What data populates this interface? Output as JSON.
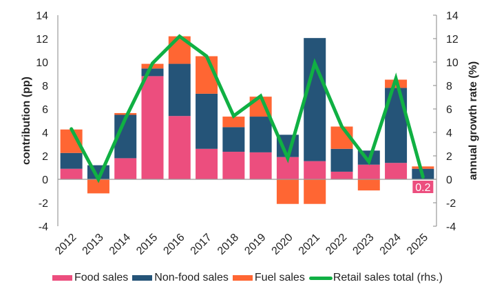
{
  "chart_data": {
    "type": "bar",
    "stacked": true,
    "title": "",
    "categories": [
      "2012",
      "2013",
      "2014",
      "2015",
      "2016",
      "2017",
      "2018",
      "2019",
      "2020",
      "2021",
      "2022",
      "2023",
      "2024",
      "2025"
    ],
    "series": [
      {
        "name": "Food sales",
        "type": "bar",
        "color": "#EC4E7E",
        "values": [
          0.9,
          0.0,
          1.8,
          8.8,
          5.4,
          2.6,
          2.35,
          2.3,
          1.9,
          1.55,
          0.65,
          1.25,
          1.4,
          0.0
        ]
      },
      {
        "name": "Non-food sales",
        "type": "bar",
        "color": "#255478",
        "values": [
          1.35,
          1.2,
          3.7,
          0.65,
          4.45,
          4.7,
          2.1,
          3.05,
          1.9,
          10.5,
          1.95,
          1.2,
          6.4,
          0.9
        ]
      },
      {
        "name": "Fuel sales",
        "type": "bar",
        "color": "#FF6633",
        "values": [
          2.0,
          -1.2,
          0.15,
          0.4,
          2.35,
          3.2,
          0.9,
          1.7,
          -2.1,
          -2.1,
          1.9,
          -0.95,
          0.7,
          0.2
        ]
      },
      {
        "name": "Retail sales total (rhs.)",
        "type": "line",
        "color": "#10B043",
        "axis": "right",
        "values": [
          4.3,
          0.0,
          5.2,
          9.9,
          12.2,
          10.5,
          5.4,
          7.1,
          1.8,
          9.9,
          4.5,
          1.5,
          8.6,
          0.2
        ]
      }
    ],
    "ylabel": "contribution  (pp)",
    "y2label": "annual growth rate (%)",
    "ylim": [
      -4,
      14
    ],
    "y2lim": [
      -4,
      14
    ],
    "yticks": [
      "-4",
      "-2",
      "0",
      "2",
      "4",
      "6",
      "8",
      "10",
      "12",
      "14"
    ],
    "yticks_values": [
      -4,
      -2,
      0,
      2,
      4,
      6,
      8,
      10,
      12,
      14
    ],
    "annotations": [
      {
        "category": "2025",
        "text": "0.2",
        "background": "#EC4E7E",
        "color": "#ffffff"
      }
    ],
    "grid": false,
    "legend_position": "bottom"
  }
}
